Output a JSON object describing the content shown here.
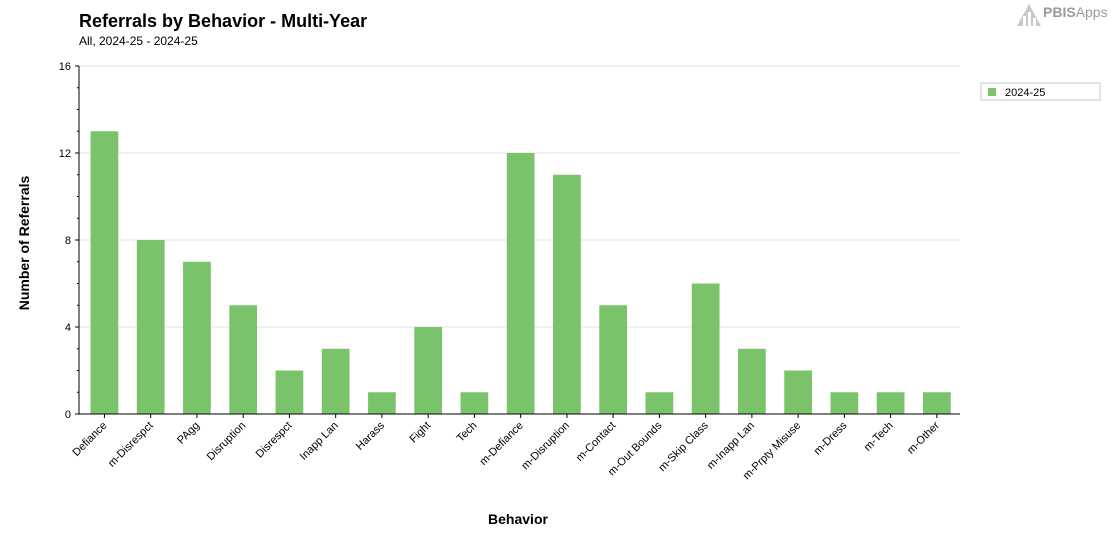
{
  "header": {
    "title": "Referrals by Behavior - Multi-Year",
    "subtitle": "All, 2024-25 - 2024-25"
  },
  "brand": {
    "name_bold": "PBIS",
    "name_rest": "Apps",
    "logo_icon": "pbis-apps-logo-icon"
  },
  "colors": {
    "bar": "#7ac36a",
    "grid": "#e0e0e0",
    "axis": "#000000"
  },
  "chart_data": {
    "type": "bar",
    "title": "Referrals by Behavior - Multi-Year",
    "subtitle": "All, 2024-25 - 2024-25",
    "xlabel": "Behavior",
    "ylabel": "Number of Referrals",
    "ylim": [
      0,
      16
    ],
    "yticks": [
      0,
      4,
      8,
      12,
      16
    ],
    "grid": true,
    "legend_position": "right",
    "categories": [
      "Defiance",
      "m-Disrespct",
      "PAgg",
      "Disruption",
      "Disrespct",
      "Inapp Lan",
      "Harass",
      "Fight",
      "Tech",
      "m-Defiance",
      "m-Disruption",
      "m-Contact",
      "m-Out Bounds",
      "m-Skip Class",
      "m-Inapp Lan",
      "m-Prpty Misuse",
      "m-Dress",
      "m-Tech",
      "m-Other"
    ],
    "series": [
      {
        "name": "2024-25",
        "color": "#7ac36a",
        "values": [
          13,
          8,
          7,
          5,
          2,
          3,
          1,
          4,
          1,
          12,
          11,
          5,
          1,
          6,
          3,
          2,
          1,
          1,
          1
        ]
      }
    ]
  }
}
